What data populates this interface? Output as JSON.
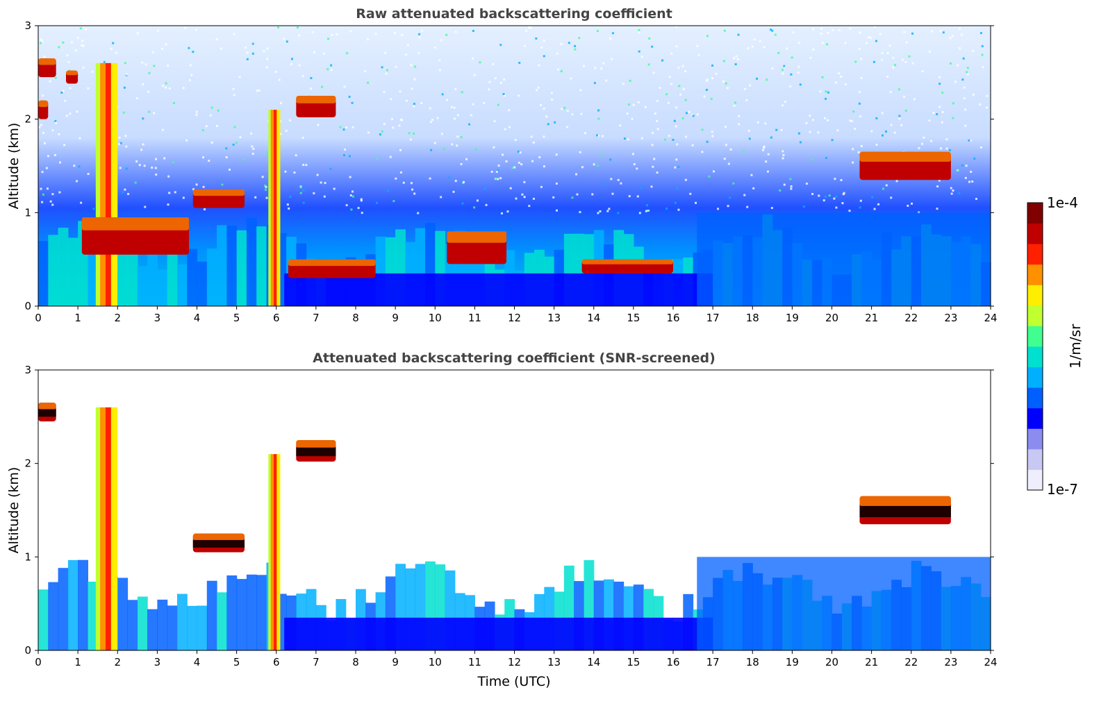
{
  "colors": {
    "colormap": [
      "#eeeefc",
      "#c8c8f4",
      "#8c8cf0",
      "#0000ff",
      "#0060ff",
      "#00b0ff",
      "#00e0d0",
      "#40ff90",
      "#c0ff30",
      "#ffee00",
      "#ff9000",
      "#ff2000",
      "#c00000",
      "#800000"
    ],
    "axis": "#000000",
    "title": "#444444"
  },
  "chart_data": [
    {
      "type": "heatmap",
      "title": "Raw attenuated backscattering coefficient",
      "xlabel": "",
      "ylabel": "Altitude (km)",
      "xlim": [
        0,
        24
      ],
      "ylim": [
        0,
        3
      ],
      "xticks": [
        "0",
        "1",
        "2",
        "3",
        "4",
        "5",
        "6",
        "7",
        "8",
        "9",
        "10",
        "11",
        "12",
        "13",
        "14",
        "15",
        "16",
        "17",
        "18",
        "19",
        "20",
        "21",
        "22",
        "23",
        "24"
      ],
      "yticks": [
        "0",
        "1",
        "2",
        "3"
      ],
      "features": [
        {
          "kind": "cloud",
          "t0": 0.0,
          "t1": 0.45,
          "z0": 2.45,
          "z1": 2.65
        },
        {
          "kind": "cloud",
          "t0": 0.0,
          "t1": 0.25,
          "z0": 2.0,
          "z1": 2.2
        },
        {
          "kind": "cloud",
          "t0": 0.7,
          "t1": 1.0,
          "z0": 2.38,
          "z1": 2.52
        },
        {
          "kind": "precip",
          "t0": 1.45,
          "t1": 2.0,
          "z0": 0.0,
          "z1": 2.6
        },
        {
          "kind": "cloud",
          "t0": 1.1,
          "t1": 3.8,
          "z0": 0.55,
          "z1": 0.95
        },
        {
          "kind": "cloud",
          "t0": 3.9,
          "t1": 5.2,
          "z0": 1.05,
          "z1": 1.25
        },
        {
          "kind": "precip",
          "t0": 5.8,
          "t1": 6.1,
          "z0": 0.0,
          "z1": 2.1
        },
        {
          "kind": "cloud",
          "t0": 6.5,
          "t1": 7.5,
          "z0": 2.02,
          "z1": 2.25
        },
        {
          "kind": "cloud",
          "t0": 6.3,
          "t1": 8.5,
          "z0": 0.3,
          "z1": 0.5
        },
        {
          "kind": "cloud",
          "t0": 10.3,
          "t1": 11.8,
          "z0": 0.45,
          "z1": 0.8
        },
        {
          "kind": "cloud",
          "t0": 13.7,
          "t1": 16.0,
          "z0": 0.35,
          "z1": 0.5
        },
        {
          "kind": "cloud",
          "t0": 20.7,
          "t1": 23.0,
          "z0": 1.35,
          "z1": 1.65
        }
      ]
    },
    {
      "type": "heatmap",
      "title": "Attenuated backscattering coefficient (SNR-screened)",
      "xlabel": "Time (UTC)",
      "ylabel": "Altitude (km)",
      "xlim": [
        0,
        24
      ],
      "ylim": [
        0,
        3
      ],
      "xticks": [
        "0",
        "1",
        "2",
        "3",
        "4",
        "5",
        "6",
        "7",
        "8",
        "9",
        "10",
        "11",
        "12",
        "13",
        "14",
        "15",
        "16",
        "17",
        "18",
        "19",
        "20",
        "21",
        "22",
        "23",
        "24"
      ],
      "yticks": [
        "0",
        "1",
        "2",
        "3"
      ],
      "features": [
        {
          "kind": "cloud",
          "t0": 0.0,
          "t1": 0.45,
          "z0": 2.45,
          "z1": 2.65
        },
        {
          "kind": "precip",
          "t0": 1.45,
          "t1": 2.0,
          "z0": 0.0,
          "z1": 2.6
        },
        {
          "kind": "cloud",
          "t0": 3.9,
          "t1": 5.2,
          "z0": 1.05,
          "z1": 1.25
        },
        {
          "kind": "precip",
          "t0": 5.8,
          "t1": 6.1,
          "z0": 0.0,
          "z1": 2.1
        },
        {
          "kind": "cloud",
          "t0": 6.5,
          "t1": 7.5,
          "z0": 2.02,
          "z1": 2.25
        },
        {
          "kind": "cloud",
          "t0": 20.7,
          "t1": 23.0,
          "z0": 1.35,
          "z1": 1.65
        }
      ]
    }
  ],
  "colorbar": {
    "label": "1/m/sr",
    "max_label": "1e-4",
    "min_label": "1e-7",
    "range": [
      1e-07,
      0.0001
    ],
    "scale": "log"
  }
}
